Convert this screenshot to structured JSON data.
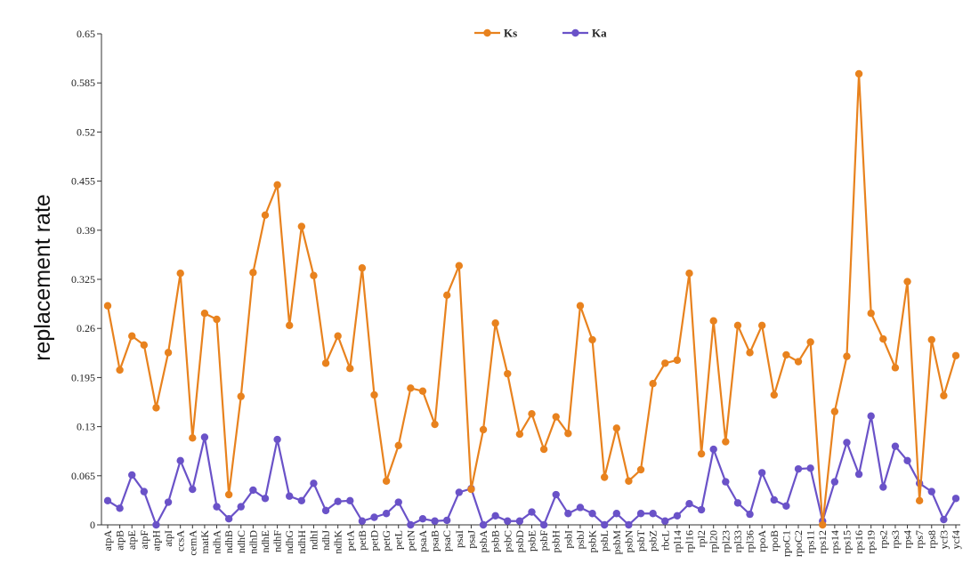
{
  "chart_data": {
    "type": "line",
    "title": "",
    "xlabel": "",
    "ylabel": "replacement rate",
    "ylim": [
      0,
      0.65
    ],
    "yticks": [
      "0",
      "0.065",
      "0.13",
      "0.195",
      "0.26",
      "0.325",
      "0.39",
      "0.455",
      "0.52",
      "0.585",
      "0.65"
    ],
    "grid": false,
    "legend_position": "top-center",
    "categories": [
      "atpA",
      "atpB",
      "atpE",
      "atpF",
      "atpH",
      "atpI",
      "ccsA",
      "cemA",
      "matK",
      "ndhA",
      "ndhB",
      "ndhC",
      "ndhD",
      "ndhE",
      "ndhF",
      "ndhG",
      "ndhH",
      "ndhI",
      "ndhJ",
      "ndhK",
      "petA",
      "petB",
      "petD",
      "petG",
      "petL",
      "petN",
      "psaA",
      "psaB",
      "psaC",
      "psaI",
      "psaJ",
      "psbA",
      "psbB",
      "psbC",
      "psbD",
      "psbE",
      "psbF",
      "psbH",
      "psbI",
      "psbJ",
      "psbK",
      "psbL",
      "psbM",
      "psbN",
      "psbT",
      "psbZ",
      "rbcL",
      "rpl14",
      "rpl16",
      "rpl2",
      "rpl20",
      "rpl23",
      "rpl33",
      "rpl36",
      "rpoA",
      "rpoB",
      "rpoC1",
      "rpoC2",
      "rps11",
      "rps12",
      "rps14",
      "rps15",
      "rps16",
      "rps19",
      "rps2",
      "rps3",
      "rps4",
      "rps7",
      "rps8",
      "ycf3",
      "ycf4"
    ],
    "series": [
      {
        "name": "Ks",
        "color": "#e8821e",
        "values": [
          0.29,
          0.205,
          0.25,
          0.238,
          0.155,
          0.228,
          0.333,
          0.115,
          0.28,
          0.272,
          0.04,
          0.17,
          0.334,
          0.41,
          0.45,
          0.264,
          0.395,
          0.33,
          0.214,
          0.25,
          0.207,
          0.34,
          0.172,
          0.058,
          0.105,
          0.181,
          0.177,
          0.133,
          0.304,
          0.343,
          0.047,
          0.126,
          0.267,
          0.2,
          0.12,
          0.147,
          0.1,
          0.143,
          0.121,
          0.29,
          0.245,
          0.063,
          0.128,
          0.058,
          0.073,
          0.187,
          0.214,
          0.218,
          0.333,
          0.094,
          0.27,
          0.11,
          0.264,
          0.228,
          0.264,
          0.172,
          0.225,
          0.216,
          0.242,
          0.0,
          0.15,
          0.223,
          0.597,
          0.28,
          0.246,
          0.208,
          0.322,
          0.032,
          0.245,
          0.171,
          0.224
        ]
      },
      {
        "name": "Ka",
        "color": "#6a52c8",
        "values": [
          0.032,
          0.022,
          0.066,
          0.044,
          0.0,
          0.03,
          0.085,
          0.047,
          0.116,
          0.024,
          0.008,
          0.024,
          0.046,
          0.035,
          0.113,
          0.038,
          0.032,
          0.055,
          0.019,
          0.031,
          0.032,
          0.005,
          0.01,
          0.015,
          0.03,
          0.0,
          0.008,
          0.005,
          0.006,
          0.043,
          0.048,
          0.0,
          0.012,
          0.005,
          0.005,
          0.017,
          0.0,
          0.04,
          0.015,
          0.023,
          0.015,
          0.0,
          0.015,
          0.0,
          0.015,
          0.015,
          0.005,
          0.012,
          0.028,
          0.02,
          0.1,
          0.057,
          0.029,
          0.014,
          0.069,
          0.033,
          0.025,
          0.074,
          0.075,
          0.005,
          0.057,
          0.109,
          0.067,
          0.144,
          0.05,
          0.104,
          0.085,
          0.055,
          0.044,
          0.007,
          0.035
        ]
      }
    ]
  }
}
